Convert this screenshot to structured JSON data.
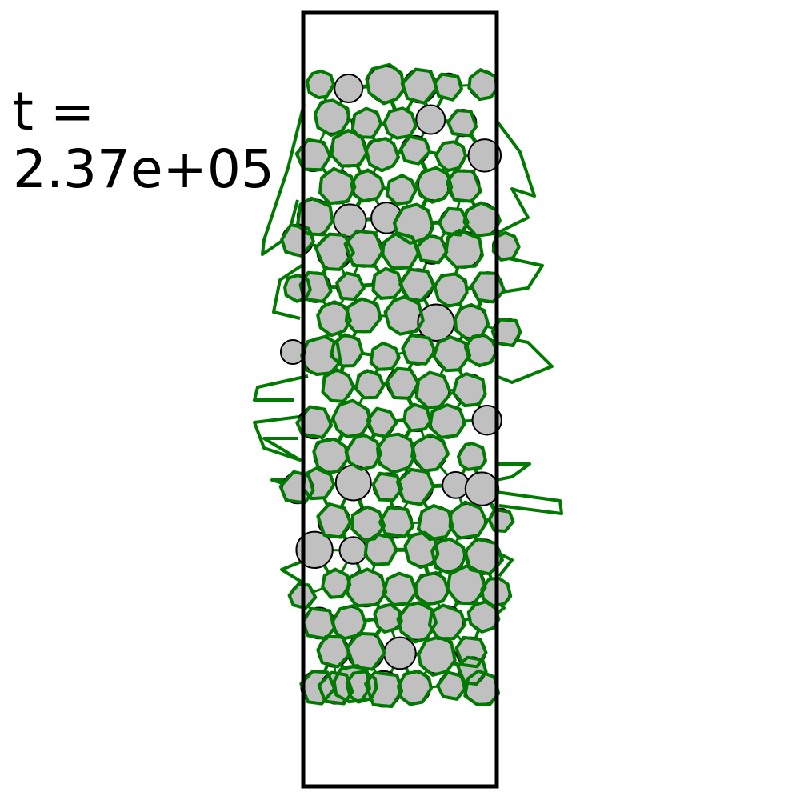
{
  "time_label": {
    "prefix": "t =",
    "value": "2.37e+05"
  },
  "colors": {
    "background": "#ffffff",
    "container_stroke": "#000000",
    "particle_fill": "#c0c0c0",
    "particle_stroke": "#000000",
    "contact_network": "#007a00"
  }
}
